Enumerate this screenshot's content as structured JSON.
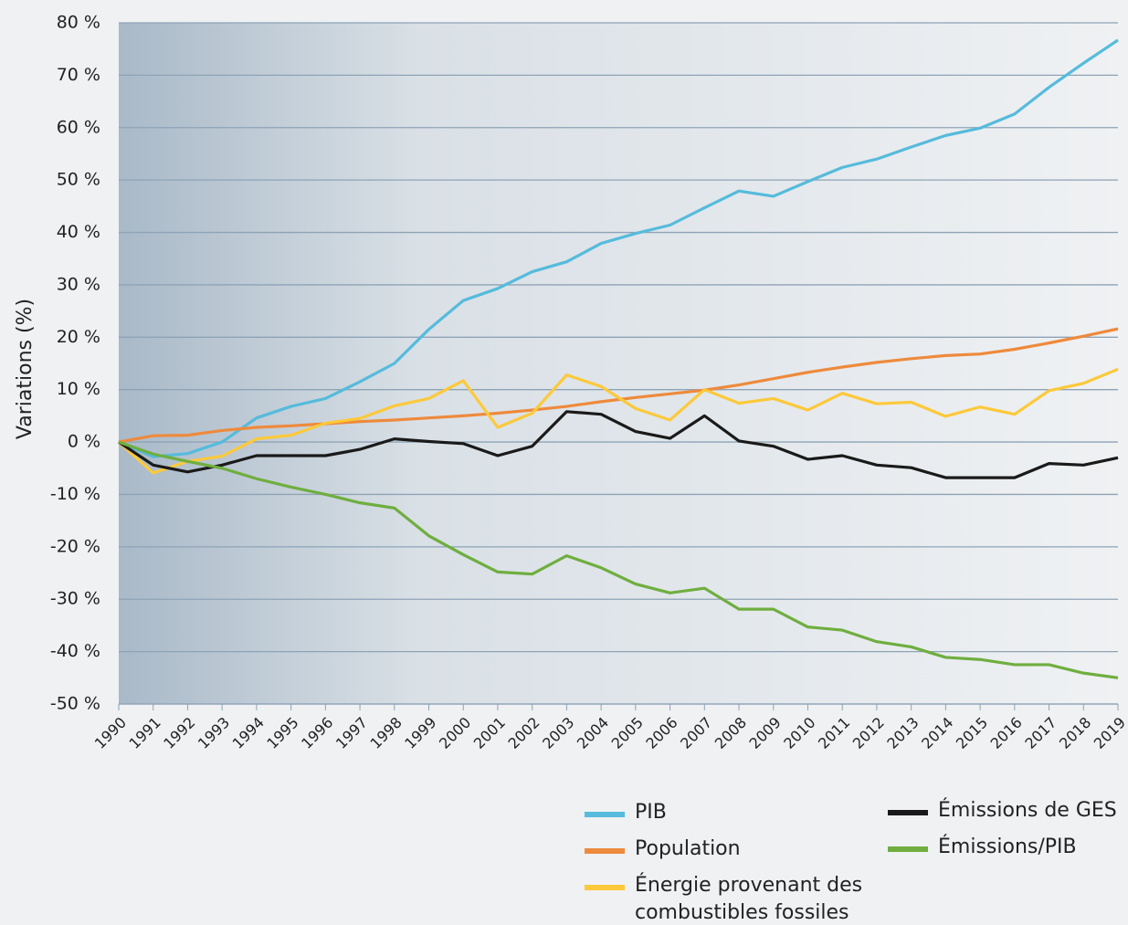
{
  "chart_data": {
    "type": "line",
    "y_label": "Variations (%)",
    "categories": [
      "1990",
      "1991",
      "1992",
      "1993",
      "1994",
      "1995",
      "1996",
      "1997",
      "1998",
      "1999",
      "2000",
      "2001",
      "2002",
      "2003",
      "2004",
      "2005",
      "2006",
      "2007",
      "2008",
      "2009",
      "2010",
      "2011",
      "2012",
      "2013",
      "2014",
      "2015",
      "2016",
      "2017",
      "2018",
      "2019"
    ],
    "series": [
      {
        "name": "PIB",
        "color": "#56bbdc",
        "values": [
          0,
          -2.8,
          -2.2,
          0,
          4.6,
          6.8,
          8.3,
          11.5,
          15,
          21.5,
          27,
          29.3,
          32.5,
          34.4,
          37.9,
          39.8,
          41.4,
          44.7,
          47.9,
          46.9,
          49.7,
          52.4,
          54,
          56.3,
          58.5,
          59.9,
          62.6,
          67.7,
          72.3,
          76.7
        ]
      },
      {
        "name": "Population",
        "color": "#ee8a3c",
        "values": [
          0,
          1.2,
          1.3,
          2.2,
          2.8,
          3.1,
          3.5,
          3.9,
          4.2,
          4.6,
          5.0,
          5.5,
          6.1,
          6.8,
          7.7,
          8.5,
          9.2,
          9.9,
          10.9,
          12.1,
          13.3,
          14.3,
          15.2,
          15.9,
          16.5,
          16.8,
          17.7,
          18.9,
          20.2,
          21.6
        ]
      },
      {
        "name": "Énergie provenant des combustibles fossiles",
        "color": "#fcc93a",
        "values": [
          0,
          -5.9,
          -3.7,
          -2.7,
          0.6,
          1.3,
          3.6,
          4.5,
          6.9,
          8.3,
          11.7,
          2.8,
          5.5,
          12.8,
          10.6,
          6.4,
          4.2,
          10.0,
          7.4,
          8.3,
          6.1,
          9.3,
          7.3,
          7.6,
          4.9,
          6.7,
          5.3,
          9.8,
          11.2,
          13.9
        ]
      },
      {
        "name": "Émissions de GES",
        "color": "#1a1a1a",
        "values": [
          0,
          -4.4,
          -5.7,
          -4.4,
          -2.6,
          -2.6,
          -2.6,
          -1.4,
          0.6,
          0.1,
          -0.3,
          -2.6,
          -0.8,
          5.8,
          5.3,
          2.0,
          0.7,
          5.0,
          0.2,
          -0.8,
          -3.3,
          -2.6,
          -4.4,
          -4.9,
          -6.8,
          -6.8,
          -6.8,
          -4.1,
          -4.4,
          -3.0
        ]
      },
      {
        "name": "Émissions/PIB",
        "color": "#6fae3f",
        "values": [
          0,
          -2.3,
          -3.7,
          -5.0,
          -7.0,
          -8.6,
          -10.0,
          -11.6,
          -12.6,
          -17.9,
          -21.5,
          -24.8,
          -25.2,
          -21.7,
          -24.0,
          -27.1,
          -28.8,
          -27.9,
          -31.9,
          -31.9,
          -35.3,
          -35.9,
          -38.1,
          -39.1,
          -41.1,
          -41.5,
          -42.5,
          -42.5,
          -44.1,
          -45.0
        ]
      }
    ],
    "ylim": [
      -50,
      80
    ],
    "yticks": [
      {
        "value": -50,
        "label": "-50 %"
      },
      {
        "value": -40,
        "label": "-40 %"
      },
      {
        "value": -30,
        "label": "-30 %"
      },
      {
        "value": -20,
        "label": "-20 %"
      },
      {
        "value": -10,
        "label": "-10 %"
      },
      {
        "value": 0,
        "label": "0 %"
      },
      {
        "value": 10,
        "label": "10 %"
      },
      {
        "value": 20,
        "label": "20 %"
      },
      {
        "value": 30,
        "label": "30 %"
      },
      {
        "value": 40,
        "label": "40 %"
      },
      {
        "value": 50,
        "label": "50 %"
      },
      {
        "value": 60,
        "label": "60 %"
      },
      {
        "value": 70,
        "label": "70 %"
      },
      {
        "value": 80,
        "label": "80 %"
      }
    ],
    "grid": true
  }
}
